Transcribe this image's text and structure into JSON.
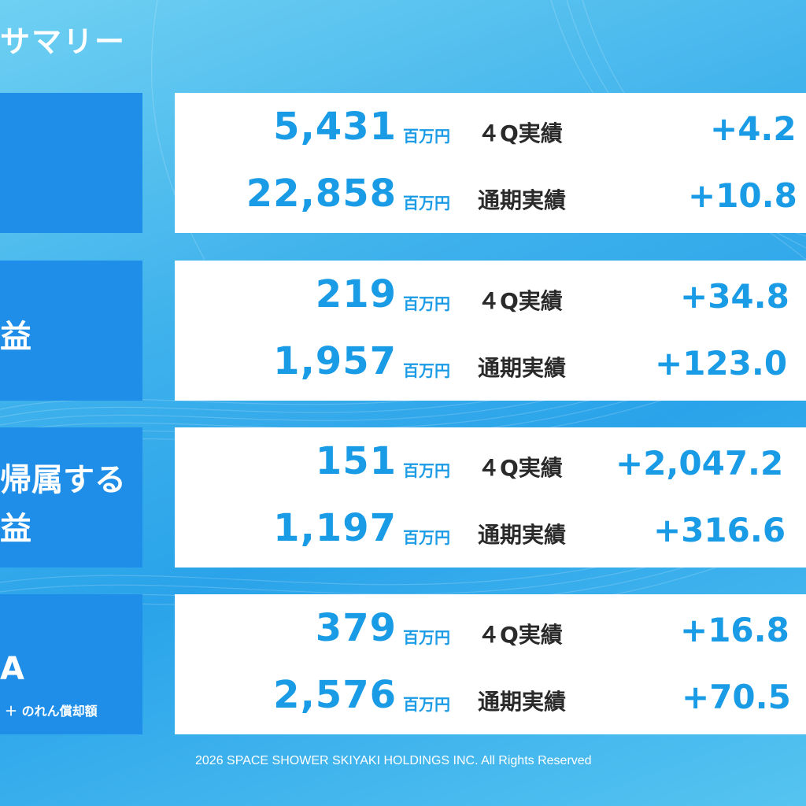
{
  "page_title": "サマリー",
  "rows": [
    {
      "label_lines": [],
      "items": [
        {
          "value": "5,431",
          "unit": "百万円",
          "period": "４Q実績",
          "change": "+4.2"
        },
        {
          "value": "22,858",
          "unit": "百万円",
          "period": "通期実績",
          "change": "+10.8"
        }
      ]
    },
    {
      "label_lines": [
        "益"
      ],
      "items": [
        {
          "value": "219",
          "unit": "百万円",
          "period": "４Q実績",
          "change": "+34.8"
        },
        {
          "value": "1,957",
          "unit": "百万円",
          "period": "通期実績",
          "change": "+123.0"
        }
      ]
    },
    {
      "label_lines": [
        "帰属する",
        "益"
      ],
      "items": [
        {
          "value": "151",
          "unit": "百万円",
          "period": "４Q実績",
          "change": "+2,047.2"
        },
        {
          "value": "1,197",
          "unit": "百万円",
          "period": "通期実績",
          "change": "+316.6"
        }
      ]
    },
    {
      "label_lines": [
        "A"
      ],
      "label_note": "＋ のれん償却額",
      "items": [
        {
          "value": "379",
          "unit": "百万円",
          "period": "４Q実績",
          "change": "+16.8"
        },
        {
          "value": "2,576",
          "unit": "百万円",
          "period": "通期実績",
          "change": "+70.5"
        }
      ]
    }
  ],
  "footer": "2026 SPACE SHOWER SKIYAKI HOLDINGS INC. All Rights Reserved",
  "colors": {
    "accent": "#1a9be6",
    "label_bg": "#1e8ee8",
    "background": "#3fb2ec"
  }
}
